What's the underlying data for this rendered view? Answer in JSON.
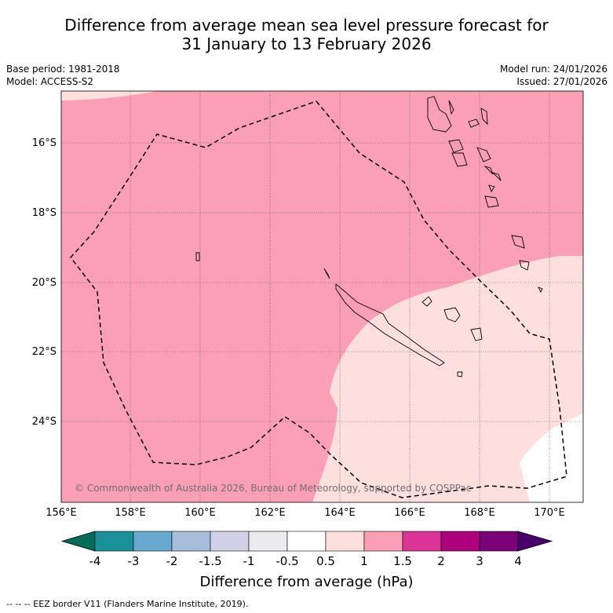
{
  "title": {
    "line1": "Difference from average mean sea level pressure forecast for",
    "line2": "31 January to 13 February 2026"
  },
  "meta": {
    "base_period": "Base period: 1981-2018",
    "model": "Model: ACCESS-S2",
    "model_run": "Model run: 24/01/2026",
    "issued": "Issued: 27/01/2026"
  },
  "axes": {
    "lat_labels": [
      "16°S",
      "18°S",
      "20°S",
      "22°S",
      "24°S"
    ],
    "lon_labels": [
      "156°E",
      "158°E",
      "160°E",
      "162°E",
      "164°E",
      "166°E",
      "168°E",
      "170°E"
    ]
  },
  "copyright": "© Commonwealth of Australia 2026, Bureau of Meteorology, supported by COSPPac",
  "colorbar": {
    "tick_labels": [
      "-4",
      "-3",
      "-2",
      "-1.5",
      "-1",
      "-0.5",
      "0.5",
      "1",
      "1.5",
      "2",
      "3",
      "4"
    ],
    "colors": [
      "#1a9099",
      "#67a9cf",
      "#a6bddb",
      "#d0d1e6",
      "#ececf0",
      "#ffffff",
      "#fde0dd",
      "#fa9fb5",
      "#dd3497",
      "#ae017e",
      "#7a0177"
    ],
    "under_color": "#016c59",
    "over_color": "#49006a",
    "label": "Difference from average (hPa)"
  },
  "legend": {
    "eez_label": "--  --  -- EEZ border V11 (Flanders Marine Institute, 2019)."
  },
  "map": {
    "fill_colors": {
      "moderate": "#fa9fb5",
      "weak": "#fde0dd",
      "neutral": "#ffffff"
    }
  }
}
